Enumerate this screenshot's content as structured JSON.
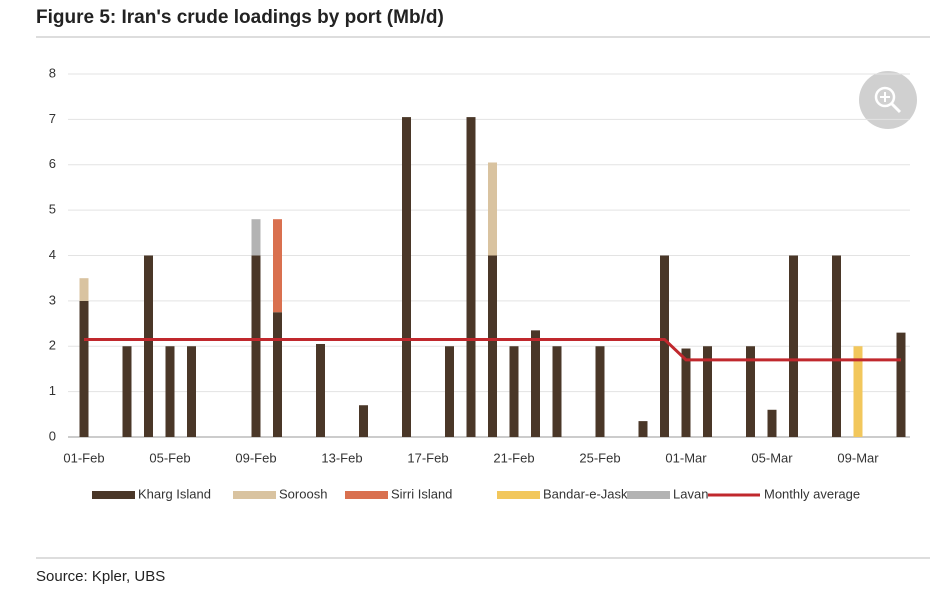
{
  "chart_data": {
    "type": "bar",
    "stacked": true,
    "title": "Figure 5: Iran's crude loadings by port (Mb/d)",
    "source": "Source: Kpler, UBS",
    "categories": [
      "01-Feb",
      null,
      null,
      null,
      "05-Feb",
      null,
      null,
      null,
      "09-Feb",
      null,
      null,
      null,
      "13-Feb",
      null,
      null,
      null,
      "17-Feb",
      null,
      null,
      null,
      "21-Feb",
      null,
      null,
      null,
      "25-Feb",
      null,
      null,
      null,
      "01-Mar",
      null,
      null,
      null,
      "05-Mar",
      null,
      null,
      null,
      "09-Mar",
      null,
      null
    ],
    "series": [
      {
        "name": "Kharg Island",
        "color": "#4a3728",
        "values": [
          3,
          null,
          2,
          4,
          2,
          2,
          null,
          null,
          4,
          2.75,
          null,
          2.05,
          null,
          0.7,
          null,
          7.05,
          null,
          2,
          7.05,
          4,
          2,
          2.35,
          2,
          null,
          2,
          null,
          0.35,
          4,
          1.95,
          2,
          null,
          2,
          0.6,
          4,
          null,
          4,
          null,
          null,
          2.3
        ]
      },
      {
        "name": "Soroosh",
        "color": "#d9c3a0",
        "values": [
          0.5,
          null,
          null,
          null,
          null,
          null,
          null,
          null,
          null,
          null,
          null,
          null,
          null,
          null,
          null,
          null,
          null,
          null,
          null,
          2.05,
          null,
          null,
          null,
          null,
          null,
          null,
          null,
          null,
          null,
          null,
          null,
          null,
          null,
          null,
          null,
          null,
          null,
          null,
          null
        ]
      },
      {
        "name": "Sirri Island",
        "color": "#d9704f",
        "values": [
          null,
          null,
          null,
          null,
          null,
          null,
          null,
          null,
          null,
          2.05,
          null,
          null,
          null,
          null,
          null,
          null,
          null,
          null,
          null,
          null,
          null,
          null,
          null,
          null,
          null,
          null,
          null,
          null,
          null,
          null,
          null,
          null,
          null,
          null,
          null,
          null,
          null,
          null,
          null
        ]
      },
      {
        "name": "Bandar-e-Jask",
        "color": "#f2c75c",
        "values": [
          null,
          null,
          null,
          null,
          null,
          null,
          null,
          null,
          null,
          null,
          null,
          null,
          null,
          null,
          null,
          null,
          null,
          null,
          null,
          null,
          null,
          null,
          null,
          null,
          null,
          null,
          null,
          null,
          null,
          null,
          null,
          null,
          null,
          null,
          null,
          null,
          2,
          null,
          null
        ]
      },
      {
        "name": "Lavan",
        "color": "#b3b3b3",
        "values": [
          null,
          null,
          null,
          null,
          null,
          null,
          null,
          null,
          0.8,
          null,
          null,
          null,
          null,
          null,
          null,
          null,
          null,
          null,
          null,
          null,
          null,
          null,
          null,
          null,
          null,
          null,
          null,
          null,
          null,
          null,
          null,
          null,
          null,
          null,
          null,
          null,
          null,
          null,
          null
        ]
      },
      {
        "name": "Monthly average",
        "color": "#c0282d",
        "type": "line",
        "values": [
          2.15,
          2.15,
          2.15,
          2.15,
          2.15,
          2.15,
          2.15,
          2.15,
          2.15,
          2.15,
          2.15,
          2.15,
          2.15,
          2.15,
          2.15,
          2.15,
          2.15,
          2.15,
          2.15,
          2.15,
          2.15,
          2.15,
          2.15,
          2.15,
          2.15,
          2.15,
          2.15,
          2.15,
          1.7,
          1.7,
          1.7,
          1.7,
          1.7,
          1.7,
          1.7,
          1.7,
          1.7,
          1.7,
          1.7
        ]
      }
    ],
    "ylim": [
      0,
      8
    ],
    "yticks": [
      0,
      1,
      2,
      3,
      4,
      5,
      6,
      7,
      8
    ],
    "grid": true,
    "legend": "bottom"
  }
}
